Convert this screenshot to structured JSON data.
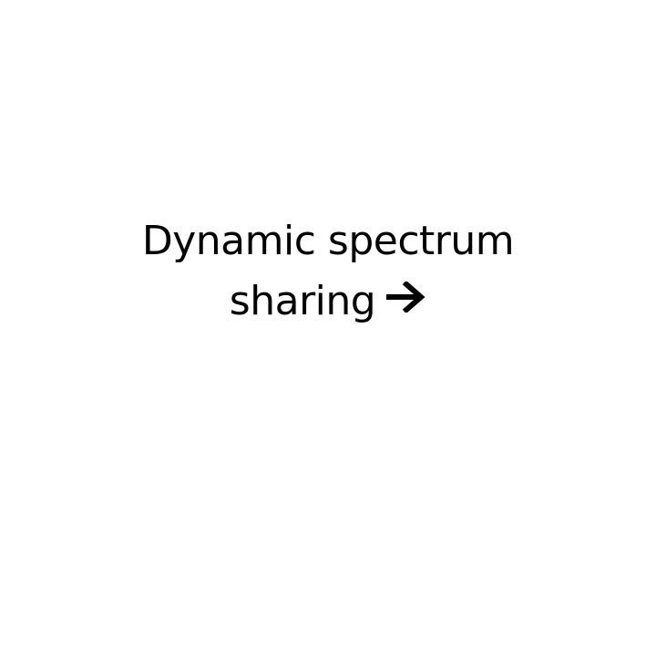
{
  "caption": {
    "line1": "Dynamic spectrum",
    "line2": "sharing",
    "arrow_icon": "right-arrow-icon"
  }
}
